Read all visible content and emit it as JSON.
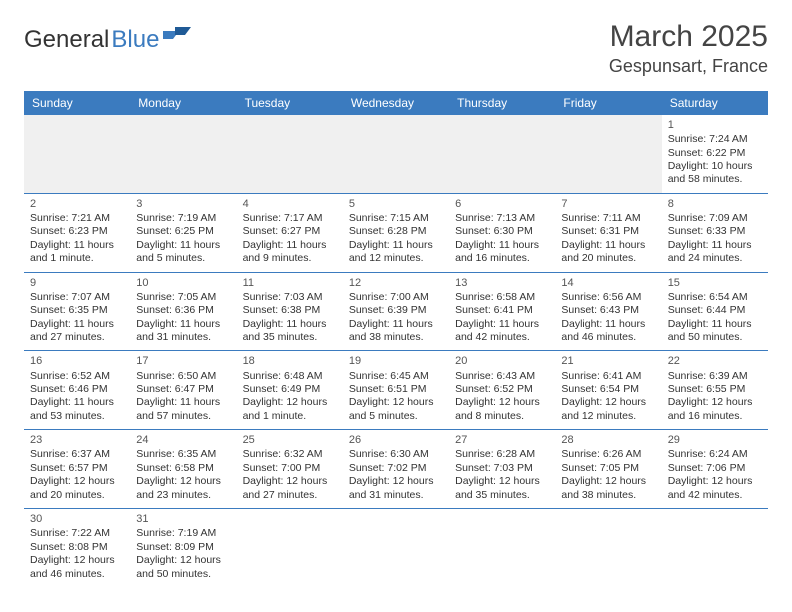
{
  "logo": {
    "text1": "General",
    "text2": "Blue"
  },
  "title": "March 2025",
  "location": "Gespunsart, France",
  "colors": {
    "header_bg": "#3b7bbf",
    "header_fg": "#ffffff",
    "row_divider": "#3b7bbf",
    "blank_bg": "#f0f0f0",
    "text": "#333333"
  },
  "day_headers": [
    "Sunday",
    "Monday",
    "Tuesday",
    "Wednesday",
    "Thursday",
    "Friday",
    "Saturday"
  ],
  "weeks": [
    [
      null,
      null,
      null,
      null,
      null,
      null,
      {
        "n": "1",
        "sr": "Sunrise: 7:24 AM",
        "ss": "Sunset: 6:22 PM",
        "d1": "Daylight: 10 hours",
        "d2": "and 58 minutes."
      }
    ],
    [
      {
        "n": "2",
        "sr": "Sunrise: 7:21 AM",
        "ss": "Sunset: 6:23 PM",
        "d1": "Daylight: 11 hours",
        "d2": "and 1 minute."
      },
      {
        "n": "3",
        "sr": "Sunrise: 7:19 AM",
        "ss": "Sunset: 6:25 PM",
        "d1": "Daylight: 11 hours",
        "d2": "and 5 minutes."
      },
      {
        "n": "4",
        "sr": "Sunrise: 7:17 AM",
        "ss": "Sunset: 6:27 PM",
        "d1": "Daylight: 11 hours",
        "d2": "and 9 minutes."
      },
      {
        "n": "5",
        "sr": "Sunrise: 7:15 AM",
        "ss": "Sunset: 6:28 PM",
        "d1": "Daylight: 11 hours",
        "d2": "and 12 minutes."
      },
      {
        "n": "6",
        "sr": "Sunrise: 7:13 AM",
        "ss": "Sunset: 6:30 PM",
        "d1": "Daylight: 11 hours",
        "d2": "and 16 minutes."
      },
      {
        "n": "7",
        "sr": "Sunrise: 7:11 AM",
        "ss": "Sunset: 6:31 PM",
        "d1": "Daylight: 11 hours",
        "d2": "and 20 minutes."
      },
      {
        "n": "8",
        "sr": "Sunrise: 7:09 AM",
        "ss": "Sunset: 6:33 PM",
        "d1": "Daylight: 11 hours",
        "d2": "and 24 minutes."
      }
    ],
    [
      {
        "n": "9",
        "sr": "Sunrise: 7:07 AM",
        "ss": "Sunset: 6:35 PM",
        "d1": "Daylight: 11 hours",
        "d2": "and 27 minutes."
      },
      {
        "n": "10",
        "sr": "Sunrise: 7:05 AM",
        "ss": "Sunset: 6:36 PM",
        "d1": "Daylight: 11 hours",
        "d2": "and 31 minutes."
      },
      {
        "n": "11",
        "sr": "Sunrise: 7:03 AM",
        "ss": "Sunset: 6:38 PM",
        "d1": "Daylight: 11 hours",
        "d2": "and 35 minutes."
      },
      {
        "n": "12",
        "sr": "Sunrise: 7:00 AM",
        "ss": "Sunset: 6:39 PM",
        "d1": "Daylight: 11 hours",
        "d2": "and 38 minutes."
      },
      {
        "n": "13",
        "sr": "Sunrise: 6:58 AM",
        "ss": "Sunset: 6:41 PM",
        "d1": "Daylight: 11 hours",
        "d2": "and 42 minutes."
      },
      {
        "n": "14",
        "sr": "Sunrise: 6:56 AM",
        "ss": "Sunset: 6:43 PM",
        "d1": "Daylight: 11 hours",
        "d2": "and 46 minutes."
      },
      {
        "n": "15",
        "sr": "Sunrise: 6:54 AM",
        "ss": "Sunset: 6:44 PM",
        "d1": "Daylight: 11 hours",
        "d2": "and 50 minutes."
      }
    ],
    [
      {
        "n": "16",
        "sr": "Sunrise: 6:52 AM",
        "ss": "Sunset: 6:46 PM",
        "d1": "Daylight: 11 hours",
        "d2": "and 53 minutes."
      },
      {
        "n": "17",
        "sr": "Sunrise: 6:50 AM",
        "ss": "Sunset: 6:47 PM",
        "d1": "Daylight: 11 hours",
        "d2": "and 57 minutes."
      },
      {
        "n": "18",
        "sr": "Sunrise: 6:48 AM",
        "ss": "Sunset: 6:49 PM",
        "d1": "Daylight: 12 hours",
        "d2": "and 1 minute."
      },
      {
        "n": "19",
        "sr": "Sunrise: 6:45 AM",
        "ss": "Sunset: 6:51 PM",
        "d1": "Daylight: 12 hours",
        "d2": "and 5 minutes."
      },
      {
        "n": "20",
        "sr": "Sunrise: 6:43 AM",
        "ss": "Sunset: 6:52 PM",
        "d1": "Daylight: 12 hours",
        "d2": "and 8 minutes."
      },
      {
        "n": "21",
        "sr": "Sunrise: 6:41 AM",
        "ss": "Sunset: 6:54 PM",
        "d1": "Daylight: 12 hours",
        "d2": "and 12 minutes."
      },
      {
        "n": "22",
        "sr": "Sunrise: 6:39 AM",
        "ss": "Sunset: 6:55 PM",
        "d1": "Daylight: 12 hours",
        "d2": "and 16 minutes."
      }
    ],
    [
      {
        "n": "23",
        "sr": "Sunrise: 6:37 AM",
        "ss": "Sunset: 6:57 PM",
        "d1": "Daylight: 12 hours",
        "d2": "and 20 minutes."
      },
      {
        "n": "24",
        "sr": "Sunrise: 6:35 AM",
        "ss": "Sunset: 6:58 PM",
        "d1": "Daylight: 12 hours",
        "d2": "and 23 minutes."
      },
      {
        "n": "25",
        "sr": "Sunrise: 6:32 AM",
        "ss": "Sunset: 7:00 PM",
        "d1": "Daylight: 12 hours",
        "d2": "and 27 minutes."
      },
      {
        "n": "26",
        "sr": "Sunrise: 6:30 AM",
        "ss": "Sunset: 7:02 PM",
        "d1": "Daylight: 12 hours",
        "d2": "and 31 minutes."
      },
      {
        "n": "27",
        "sr": "Sunrise: 6:28 AM",
        "ss": "Sunset: 7:03 PM",
        "d1": "Daylight: 12 hours",
        "d2": "and 35 minutes."
      },
      {
        "n": "28",
        "sr": "Sunrise: 6:26 AM",
        "ss": "Sunset: 7:05 PM",
        "d1": "Daylight: 12 hours",
        "d2": "and 38 minutes."
      },
      {
        "n": "29",
        "sr": "Sunrise: 6:24 AM",
        "ss": "Sunset: 7:06 PM",
        "d1": "Daylight: 12 hours",
        "d2": "and 42 minutes."
      }
    ],
    [
      {
        "n": "30",
        "sr": "Sunrise: 7:22 AM",
        "ss": "Sunset: 8:08 PM",
        "d1": "Daylight: 12 hours",
        "d2": "and 46 minutes."
      },
      {
        "n": "31",
        "sr": "Sunrise: 7:19 AM",
        "ss": "Sunset: 8:09 PM",
        "d1": "Daylight: 12 hours",
        "d2": "and 50 minutes."
      },
      null,
      null,
      null,
      null,
      null
    ]
  ]
}
